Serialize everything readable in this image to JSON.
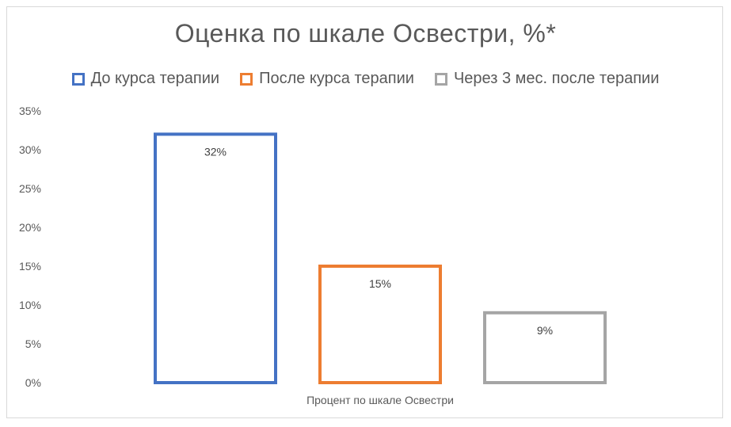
{
  "chart_data": {
    "type": "bar",
    "title": "Оценка по шкале Освестри, %*",
    "categories": [
      "Процент по шкале Освестри"
    ],
    "series": [
      {
        "name": "До курса терапии",
        "values": [
          32
        ],
        "label": "32%",
        "color": "#4472c4"
      },
      {
        "name": "После курса терапии",
        "values": [
          15
        ],
        "label": "15%",
        "color": "#ed7d31"
      },
      {
        "name": "Через 3 мес. после терапии",
        "values": [
          9
        ],
        "label": "9%",
        "color": "#a5a5a5"
      }
    ],
    "yticks": [
      "0%",
      "5%",
      "10%",
      "15%",
      "20%",
      "25%",
      "30%",
      "35%"
    ],
    "ylim": [
      0,
      35
    ],
    "grid": false,
    "legend_position": "top"
  }
}
